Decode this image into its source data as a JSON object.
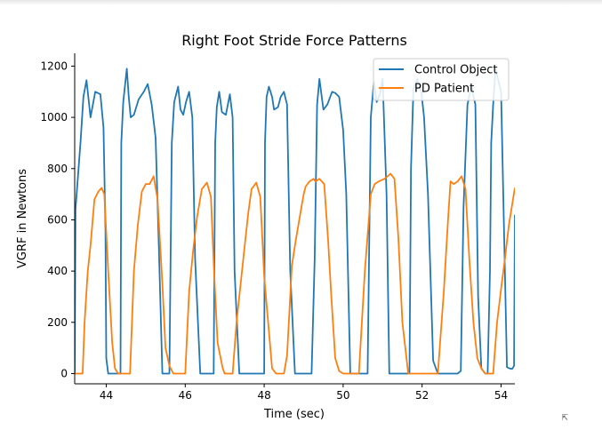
{
  "chart_data": {
    "type": "line",
    "title": "Right Foot Stride Force Patterns",
    "xlabel": "Time (sec)",
    "ylabel": "VGRF in Newtons",
    "xlim": [
      43.2,
      54.35
    ],
    "ylim": [
      -40,
      1250
    ],
    "xticks": [
      44,
      46,
      48,
      50,
      52,
      54
    ],
    "yticks": [
      0,
      200,
      400,
      600,
      800,
      1000,
      1200
    ],
    "grid": false,
    "legend": "top-right",
    "series": [
      {
        "name": "Control Object",
        "color": "#1f77b4",
        "x": [
          43.2,
          43.22,
          43.35,
          43.42,
          43.5,
          43.6,
          43.72,
          43.85,
          43.93,
          43.98,
          44.0,
          44.05,
          44.14,
          44.3,
          44.36,
          44.38,
          44.43,
          44.52,
          44.57,
          44.62,
          44.7,
          44.82,
          44.95,
          45.05,
          45.15,
          45.25,
          45.33,
          45.42,
          45.58,
          45.6,
          45.66,
          45.72,
          45.82,
          45.88,
          45.95,
          46.02,
          46.1,
          46.18,
          46.25,
          46.38,
          46.42,
          46.6,
          46.72,
          46.76,
          46.8,
          46.86,
          46.93,
          47.03,
          47.13,
          47.2,
          47.25,
          47.37,
          47.48,
          47.55,
          47.63,
          47.73,
          47.85,
          48.0,
          48.02,
          48.06,
          48.12,
          48.2,
          48.25,
          48.35,
          48.42,
          48.5,
          48.58,
          48.66,
          48.78,
          48.85,
          49.0,
          49.1,
          49.2,
          49.28,
          49.34,
          49.4,
          49.5,
          49.6,
          49.72,
          49.8,
          49.9,
          50.0,
          50.08,
          50.18,
          50.4,
          50.5,
          50.56,
          50.62,
          50.7,
          50.78,
          50.85,
          50.93,
          51.0,
          51.1,
          51.17,
          51.3,
          51.4,
          51.6,
          51.68,
          51.72,
          51.78,
          51.88,
          51.98,
          52.05,
          52.15,
          52.28,
          52.4,
          52.48,
          52.6,
          52.8,
          52.9,
          52.98,
          53.05,
          53.15,
          53.25,
          53.35,
          53.42,
          53.5,
          53.6,
          53.66,
          53.72,
          53.75,
          53.8,
          53.86,
          54.0,
          54.15,
          54.22,
          54.28,
          54.33,
          54.35
        ],
        "y": [
          0,
          640,
          910,
          1080,
          1145,
          1000,
          1100,
          1090,
          960,
          560,
          60,
          0,
          0,
          0,
          0,
          900,
          1060,
          1190,
          1080,
          1000,
          1010,
          1070,
          1100,
          1130,
          1050,
          920,
          500,
          0,
          0,
          0,
          900,
          1060,
          1120,
          1030,
          1010,
          1060,
          1100,
          1000,
          450,
          0,
          0,
          0,
          0,
          900,
          1040,
          1100,
          1020,
          1010,
          1090,
          1000,
          400,
          0,
          0,
          0,
          0,
          0,
          0,
          0,
          900,
          1080,
          1120,
          1080,
          1030,
          1040,
          1080,
          1100,
          1050,
          400,
          0,
          0,
          0,
          0,
          0,
          450,
          1050,
          1150,
          1030,
          1050,
          1100,
          1095,
          1080,
          950,
          700,
          0,
          0,
          0,
          0,
          0,
          1000,
          1140,
          1060,
          1090,
          1150,
          700,
          0,
          0,
          0,
          0,
          0,
          800,
          1110,
          1150,
          1100,
          1000,
          700,
          50,
          0,
          0,
          0,
          0,
          0,
          10,
          650,
          1050,
          1120,
          1050,
          300,
          20,
          0,
          0,
          400,
          900,
          1050,
          1190,
          1100,
          25,
          20,
          18,
          30,
          620
        ]
      },
      {
        "name": "PD Patient",
        "color": "#ff7f0e",
        "x": [
          43.2,
          43.4,
          43.45,
          43.53,
          43.6,
          43.7,
          43.8,
          43.88,
          43.95,
          44.05,
          44.15,
          44.22,
          44.3,
          44.5,
          44.6,
          44.7,
          44.8,
          44.9,
          45.0,
          45.1,
          45.2,
          45.3,
          45.42,
          45.5,
          45.6,
          45.7,
          45.78,
          45.9,
          46.0,
          46.1,
          46.2,
          46.3,
          46.42,
          46.55,
          46.65,
          46.73,
          46.82,
          46.95,
          47.0,
          47.1,
          47.2,
          47.3,
          47.5,
          47.6,
          47.68,
          47.8,
          47.9,
          48.0,
          48.2,
          48.3,
          48.42,
          48.5,
          48.58,
          48.7,
          48.8,
          49.0,
          49.05,
          49.15,
          49.25,
          49.3,
          49.4,
          49.52,
          49.62,
          49.7,
          49.8,
          49.9,
          50.0,
          50.2,
          50.4,
          50.55,
          50.7,
          50.8,
          50.9,
          51.05,
          51.2,
          51.3,
          51.4,
          51.5,
          51.65,
          51.78,
          51.9,
          52.0,
          52.1,
          52.4,
          52.55,
          52.65,
          52.72,
          52.8,
          52.9,
          53.0,
          53.1,
          53.2,
          53.3,
          53.4,
          53.5,
          53.6,
          53.8,
          53.9,
          54.0,
          54.1,
          54.2,
          54.35
        ],
        "y": [
          0,
          0,
          200,
          400,
          500,
          680,
          710,
          725,
          700,
          400,
          120,
          20,
          0,
          0,
          0,
          400,
          580,
          710,
          740,
          740,
          770,
          680,
          350,
          100,
          30,
          0,
          0,
          0,
          0,
          320,
          480,
          610,
          720,
          745,
          690,
          400,
          120,
          20,
          0,
          0,
          0,
          200,
          490,
          630,
          720,
          745,
          690,
          380,
          20,
          0,
          0,
          0,
          70,
          420,
          520,
          700,
          730,
          750,
          760,
          750,
          760,
          740,
          520,
          300,
          60,
          10,
          0,
          0,
          0,
          400,
          700,
          740,
          750,
          760,
          780,
          760,
          530,
          200,
          0,
          0,
          0,
          0,
          0,
          0,
          320,
          580,
          750,
          740,
          750,
          770,
          720,
          440,
          200,
          60,
          20,
          0,
          0,
          200,
          330,
          450,
          580,
          725
        ]
      }
    ]
  }
}
